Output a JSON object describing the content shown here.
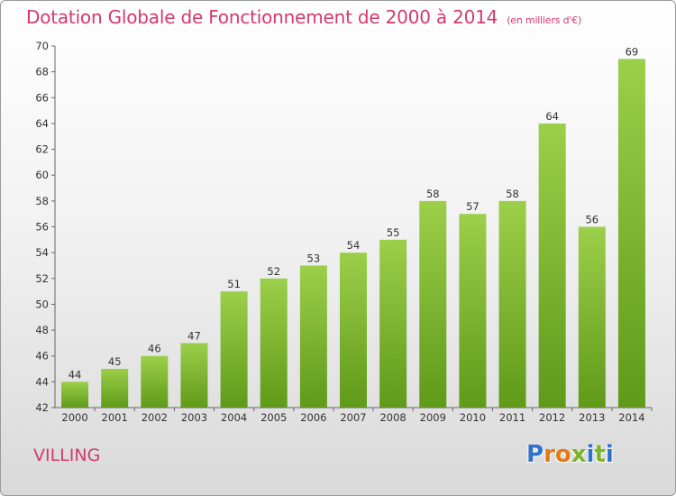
{
  "header": {
    "title": "Dotation Globale de Fonctionnement de 2000 à 2014",
    "subtitle": "(en milliers d'€)"
  },
  "footer": {
    "commune": "VILLING",
    "logo_letters": [
      "P",
      "r",
      "o",
      "x",
      "i",
      "t",
      "i"
    ]
  },
  "colors": {
    "title": "#d33a6e",
    "bar_top": "#9ccf4a",
    "bar_bottom": "#5f9a18",
    "logo": [
      "#2f73c9",
      "#e07b18",
      "#e07b18",
      "#7cb52a",
      "#2f73c9",
      "#7cb52a",
      "#2f73c9"
    ]
  },
  "chart_data": {
    "type": "bar",
    "title": "Dotation Globale de Fonctionnement de 2000 à 2014",
    "subtitle": "(en milliers d'€)",
    "categories": [
      "2000",
      "2001",
      "2002",
      "2003",
      "2004",
      "2005",
      "2006",
      "2007",
      "2008",
      "2009",
      "2010",
      "2011",
      "2012",
      "2013",
      "2014"
    ],
    "values": [
      44,
      45,
      46,
      47,
      51,
      52,
      53,
      54,
      55,
      58,
      57,
      58,
      64,
      56,
      69
    ],
    "ylim": [
      42,
      70
    ],
    "yticks": [
      42,
      44,
      46,
      48,
      50,
      52,
      54,
      56,
      58,
      60,
      62,
      64,
      66,
      68,
      70
    ],
    "grid": false,
    "legend": "none"
  }
}
